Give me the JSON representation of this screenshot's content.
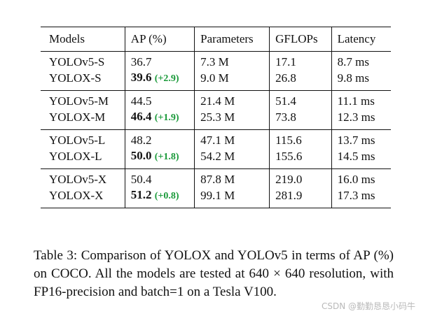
{
  "table": {
    "headers": [
      "Models",
      "AP (%)",
      "Parameters",
      "GFLOPs",
      "Latency"
    ],
    "groups": [
      {
        "baseline": {
          "model": "YOLOv5-S",
          "ap": "36.7",
          "params": "7.3 M",
          "gflops": "17.1",
          "latency": "8.7 ms"
        },
        "yolox": {
          "model": "YOLOX-S",
          "ap": "39.6",
          "gain": "(+2.9)",
          "params": "9.0 M",
          "gflops": "26.8",
          "latency": "9.8 ms"
        }
      },
      {
        "baseline": {
          "model": "YOLOv5-M",
          "ap": "44.5",
          "params": "21.4 M",
          "gflops": "51.4",
          "latency": "11.1 ms"
        },
        "yolox": {
          "model": "YOLOX-M",
          "ap": "46.4",
          "gain": "(+1.9)",
          "params": "25.3 M",
          "gflops": "73.8",
          "latency": "12.3 ms"
        }
      },
      {
        "baseline": {
          "model": "YOLOv5-L",
          "ap": "48.2",
          "params": "47.1 M",
          "gflops": "115.6",
          "latency": "13.7 ms"
        },
        "yolox": {
          "model": "YOLOX-L",
          "ap": "50.0",
          "gain": "(+1.8)",
          "params": "54.2 M",
          "gflops": "155.6",
          "latency": "14.5 ms"
        }
      },
      {
        "baseline": {
          "model": "YOLOv5-X",
          "ap": "50.4",
          "params": "87.8 M",
          "gflops": "219.0",
          "latency": "16.0 ms"
        },
        "yolox": {
          "model": "YOLOX-X",
          "ap": "51.2",
          "gain": "(+0.8)",
          "params": "99.1 M",
          "gflops": "281.9",
          "latency": "17.3 ms"
        }
      }
    ]
  },
  "caption": "Table 3: Comparison of YOLOX and YOLOv5 in terms of AP (%) on COCO. All the models are tested at 640 × 640 resolution, with FP16-precision and batch=1 on a Tesla V100.",
  "watermark": "CSDN @勤勤恳恳小码牛",
  "colors": {
    "gain": "#1a9a3a",
    "text": "#111111",
    "watermark": "#b9b9b9"
  }
}
